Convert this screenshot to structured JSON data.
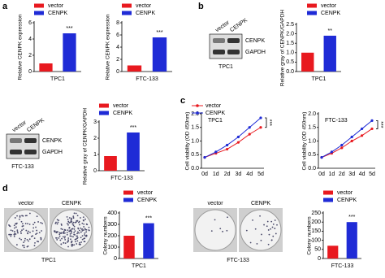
{
  "panel_labels": [
    "a",
    "b",
    "c",
    "d"
  ],
  "blots": [
    {
      "lanes": [
        "vector",
        "CENPK"
      ],
      "rows": [
        "CENPK",
        "GAPDH"
      ],
      "caption": "TPC1"
    },
    {
      "lanes": [
        "vector",
        "CENPK"
      ],
      "rows": [
        "CENPK",
        "GAPDH"
      ],
      "caption": "FTC-133"
    }
  ],
  "plates": [
    {
      "lanes": [
        "vector",
        "CENPK"
      ],
      "caption": "TPC1"
    },
    {
      "lanes": [
        "vector",
        "CENPK"
      ],
      "caption": "FTC-133"
    }
  ],
  "chart_data": [
    {
      "type": "bar",
      "y_label": "Relative CENPK expression",
      "categories": [
        "TPC1"
      ],
      "annotation": "***",
      "series": [
        {
          "name": "vector",
          "color": "#e8191f",
          "values": [
            1
          ]
        },
        {
          "name": "CENPK",
          "color": "#1f2bd6",
          "values": [
            4.7
          ]
        }
      ],
      "ylim": [
        0,
        6
      ],
      "yticks": [
        0,
        2,
        4,
        6
      ]
    },
    {
      "type": "bar",
      "y_label": "Relative CENPK expression",
      "categories": [
        "FTC-133"
      ],
      "annotation": "***",
      "series": [
        {
          "name": "vector",
          "color": "#e8191f",
          "values": [
            1
          ]
        },
        {
          "name": "CENPK",
          "color": "#1f2bd6",
          "values": [
            5.6
          ]
        }
      ],
      "ylim": [
        0,
        8
      ],
      "yticks": [
        0,
        2,
        4,
        6,
        8
      ]
    },
    {
      "type": "bar",
      "y_label": "Relative gray of CENPK/GAPDH",
      "categories": [
        "TPC1"
      ],
      "annotation": "**",
      "series": [
        {
          "name": "vector",
          "color": "#e8191f",
          "values": [
            1
          ]
        },
        {
          "name": "CENPK",
          "color": "#1f2bd6",
          "values": [
            1.9
          ]
        }
      ],
      "ylim": [
        0,
        2.5
      ],
      "yticks": [
        {
          "value": 0,
          "label": "0.0"
        },
        {
          "value": 0.5,
          "label": "0.5"
        },
        {
          "value": 1,
          "label": "1.0"
        },
        {
          "value": 1.5,
          "label": "1.5"
        },
        {
          "value": 2,
          "label": "2.0"
        },
        {
          "value": 2.5,
          "label": "2.5"
        }
      ]
    },
    {
      "type": "bar",
      "y_label": "Relative gray of CENPK/GAPDH",
      "categories": [
        "FTC-133"
      ],
      "annotation": "***",
      "series": [
        {
          "name": "vector",
          "color": "#e8191f",
          "values": [
            0.9
          ]
        },
        {
          "name": "CENPK",
          "color": "#1f2bd6",
          "values": [
            2.35
          ]
        }
      ],
      "ylim": [
        0,
        3
      ],
      "yticks": [
        0,
        1,
        2,
        3
      ]
    },
    {
      "type": "line",
      "title": "TPC1",
      "y_label": "Cell viability (OD 450nm)",
      "annotation": "***",
      "categories": [
        "0d",
        "1d",
        "2d",
        "3d",
        "4d",
        "5d"
      ],
      "series": [
        {
          "name": "vector",
          "color": "#e8191f",
          "values": [
            0.4,
            0.55,
            0.7,
            0.95,
            1.25,
            1.5
          ]
        },
        {
          "name": "CENPK",
          "color": "#1f2bd6",
          "values": [
            0.4,
            0.6,
            0.85,
            1.15,
            1.5,
            1.85
          ]
        }
      ],
      "ylim": [
        0,
        2
      ],
      "yticks": [
        {
          "value": 0,
          "label": "0.0"
        },
        {
          "value": 0.5,
          "label": "0.5"
        },
        {
          "value": 1,
          "label": "1.0"
        },
        {
          "value": 1.5,
          "label": "1.5"
        },
        {
          "value": 2,
          "label": "2.0"
        }
      ]
    },
    {
      "type": "line",
      "title": "FTC-133",
      "y_label": "Cell viability (OD 450nm)",
      "annotation": "***",
      "categories": [
        "0d",
        "1d",
        "2d",
        "3d",
        "4d",
        "5d"
      ],
      "series": [
        {
          "name": "vector",
          "color": "#e8191f",
          "values": [
            0.4,
            0.55,
            0.75,
            1.0,
            1.2,
            1.45
          ]
        },
        {
          "name": "CENPK",
          "color": "#1f2bd6",
          "values": [
            0.4,
            0.6,
            0.85,
            1.15,
            1.45,
            1.75
          ]
        }
      ],
      "ylim": [
        0,
        2
      ],
      "yticks": [
        {
          "value": 0,
          "label": "0.0"
        },
        {
          "value": 0.5,
          "label": "0.5"
        },
        {
          "value": 1,
          "label": "1.0"
        },
        {
          "value": 1.5,
          "label": "1.5"
        },
        {
          "value": 2,
          "label": "2.0"
        }
      ]
    },
    {
      "type": "bar",
      "y_label": "Colony numbers",
      "categories": [
        "TPC1"
      ],
      "annotation": "***",
      "series": [
        {
          "name": "vector",
          "color": "#e8191f",
          "values": [
            200
          ]
        },
        {
          "name": "CENPK",
          "color": "#1f2bd6",
          "values": [
            310
          ]
        }
      ],
      "ylim": [
        0,
        400
      ],
      "yticks": [
        0,
        100,
        200,
        300,
        400
      ]
    },
    {
      "type": "bar",
      "y_label": "Colony numbers",
      "categories": [
        "FTC-133"
      ],
      "annotation": "***",
      "series": [
        {
          "name": "vector",
          "color": "#e8191f",
          "values": [
            70
          ]
        },
        {
          "name": "CENPK",
          "color": "#1f2bd6",
          "values": [
            200
          ]
        }
      ],
      "ylim": [
        0,
        250
      ],
      "yticks": [
        0,
        50,
        100,
        150,
        200,
        250
      ]
    }
  ]
}
